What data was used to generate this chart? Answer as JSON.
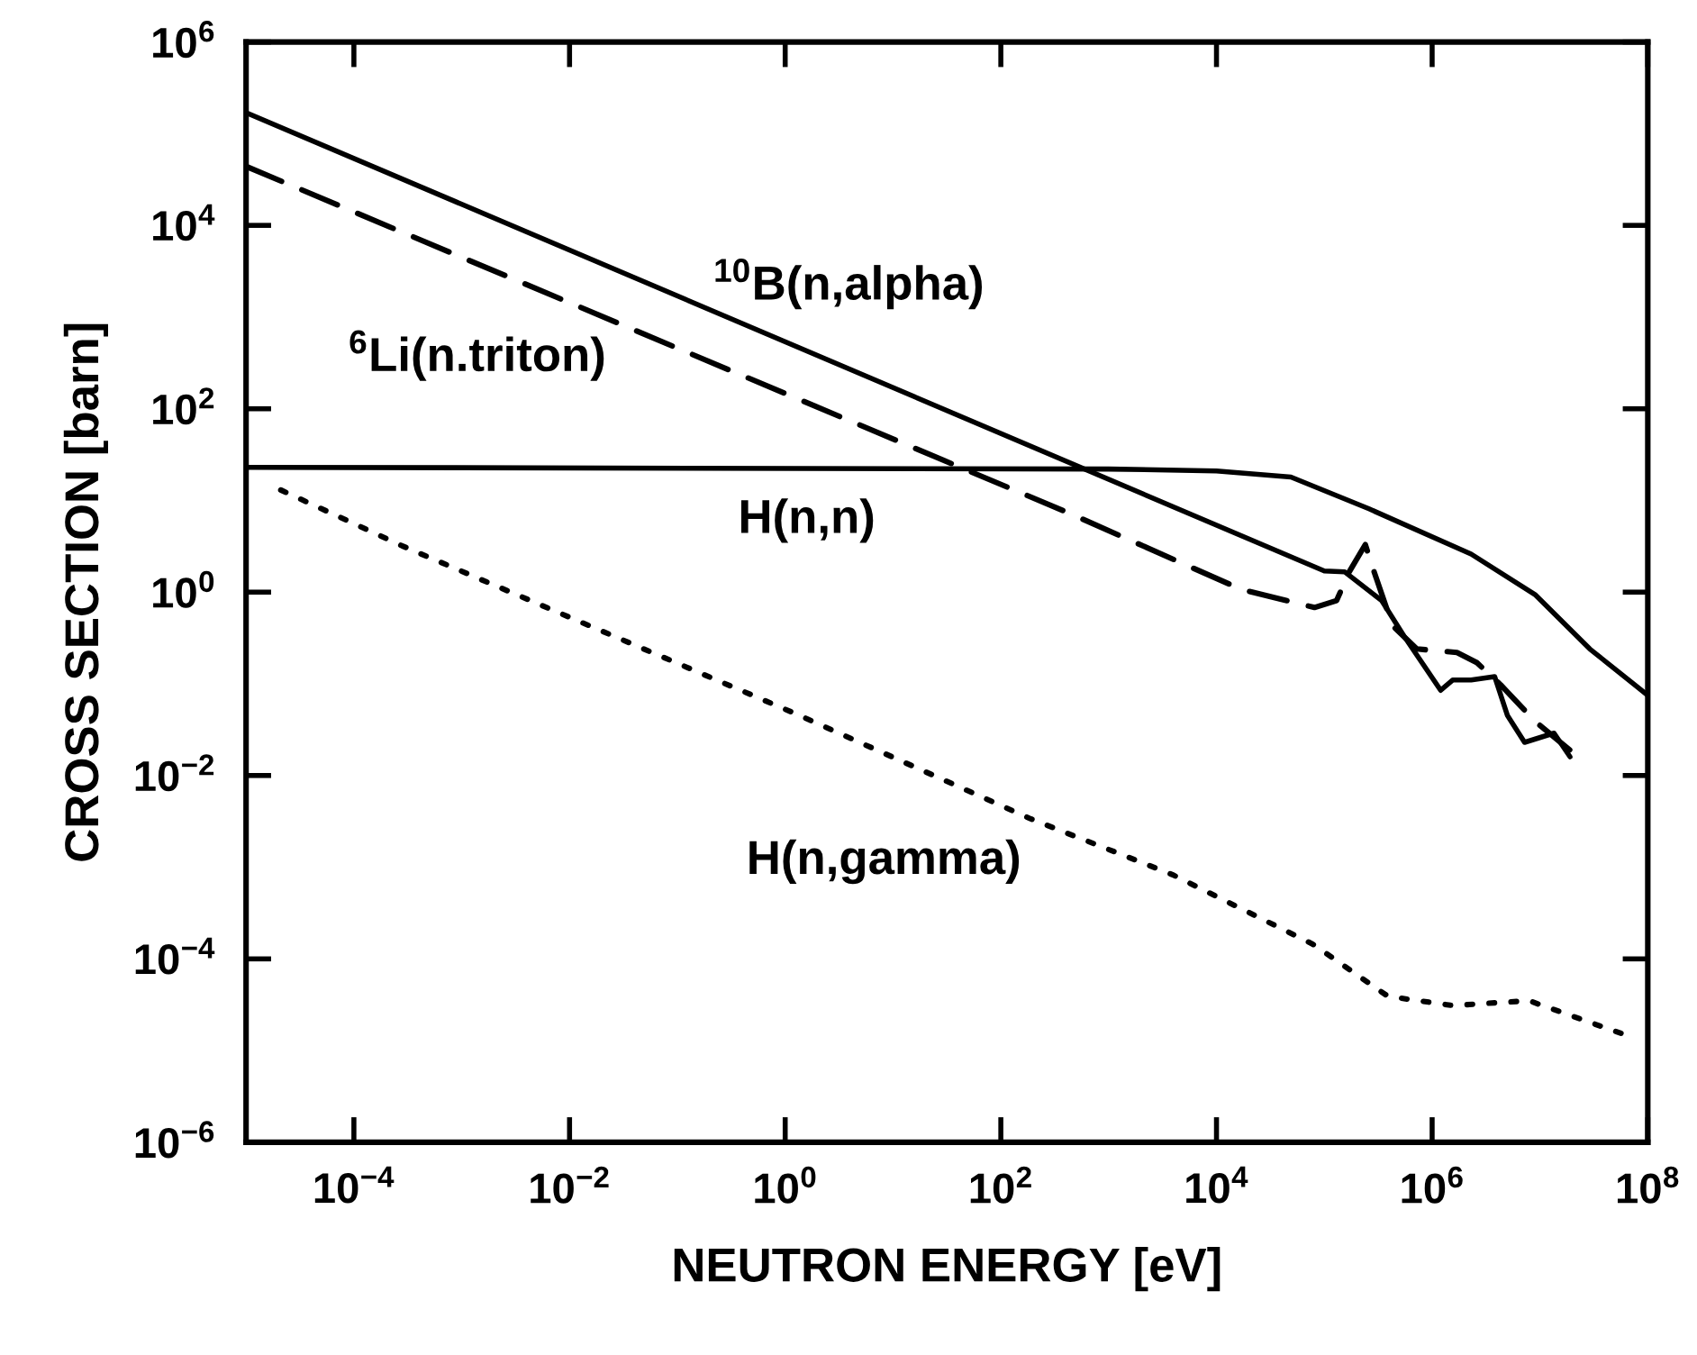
{
  "chart_data": {
    "type": "line",
    "xlabel": "NEUTRON ENERGY [eV]",
    "ylabel": "CROSS SECTION [barn]",
    "log": "xy",
    "grid": false,
    "marker": "none",
    "xlim": [
      1e-05,
      100000000.0
    ],
    "ylim": [
      1e-06,
      1000000.0
    ],
    "xticks": [
      {
        "value": 0.0001,
        "label": "10$^{−4}$"
      },
      {
        "value": 0.01,
        "label": "10$^{−2}$"
      },
      {
        "value": 1,
        "label": "10$^{0}$"
      },
      {
        "value": 100,
        "label": "10$^{2}$"
      },
      {
        "value": 10000.0,
        "label": "10$^{4}$"
      },
      {
        "value": 1000000.0,
        "label": "10$^{6}$"
      },
      {
        "value": 100000000.0,
        "label": "10$^{8}$"
      }
    ],
    "yticks": [
      {
        "value": 1e-06,
        "label": "10$^{−6}$"
      },
      {
        "value": 0.0001,
        "label": "10$^{−4}$"
      },
      {
        "value": 0.01,
        "label": "10$^{−2}$"
      },
      {
        "value": 1,
        "label": "10$^{0}$"
      },
      {
        "value": 100,
        "label": "10$^{2}$"
      },
      {
        "value": 10000.0,
        "label": "10$^{4}$"
      },
      {
        "value": 1000000.0,
        "label": "10$^{6}$"
      }
    ],
    "series": [
      {
        "name": "$^{10}$B(n,alpha)",
        "color": "#000000",
        "line_style": "solid",
        "x": [
          1e-05,
          100000.0,
          155000.0,
          340000.0,
          550000.0,
          1200000.0,
          1550000.0,
          2300000.0,
          3800000.0,
          5000000.0,
          7200000.0,
          13500000.0,
          19000000.0
        ],
        "values": [
          170000.0,
          1.7,
          1.66,
          0.81,
          0.33,
          0.085,
          0.11,
          0.11,
          0.12,
          0.045,
          0.023,
          0.029,
          0.016
        ]
      },
      {
        "name": "$^{6}$Li(n.triton)",
        "color": "#000000",
        "line_style": "dashed",
        "x": [
          1e-05,
          450,
          17000.0,
          81000.0,
          130000.0,
          170000.0,
          240000.0,
          290000.0,
          430000.0,
          720000.0,
          1700000.0,
          2600000.0,
          4300000.0,
          9000000.0,
          20000000.0
        ],
        "values": [
          44000.0,
          7.1,
          1.07,
          0.68,
          0.81,
          1.66,
          3.3,
          1.66,
          0.43,
          0.24,
          0.22,
          0.17,
          0.098,
          0.039,
          0.018
        ]
      },
      {
        "name": "H(n,n)",
        "color": "#000000",
        "line_style": "solid",
        "x": [
          1e-05,
          1000.0,
          10000.0,
          49000.0,
          260000.0,
          2300000.0,
          9100000.0,
          29000000.0,
          100000000.0
        ],
        "values": [
          23,
          22,
          21,
          18,
          8.1,
          2.6,
          0.93,
          0.24,
          0.075
        ]
      },
      {
        "name": "H(n,gamma)",
        "color": "#000000",
        "line_style": "dotted",
        "x": [
          2.1e-05,
          0.00028,
          1.26,
          186,
          3900.0,
          78000.0,
          390000.0,
          1550000.0,
          7900000.0,
          71000000.0
        ],
        "values": [
          13,
          3.2,
          0.047,
          0.0034,
          0.00083,
          0.000145,
          3.9e-05,
          3.1e-05,
          3.5e-05,
          1.4e-05
        ]
      }
    ]
  }
}
